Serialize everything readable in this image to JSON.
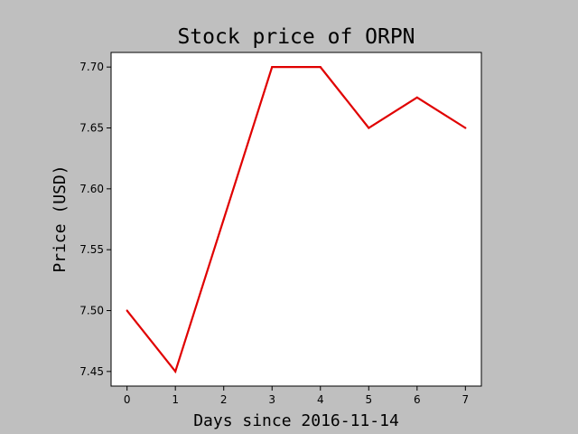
{
  "chart_data": {
    "type": "line",
    "title": "Stock price of ORPN",
    "xlabel": "Days since 2016-11-14",
    "ylabel": "Price (USD)",
    "x": [
      0,
      1,
      2,
      3,
      4,
      5,
      6,
      7
    ],
    "series": [
      {
        "name": "",
        "values": [
          7.5,
          7.45,
          7.575,
          7.7,
          7.7,
          7.65,
          7.675,
          7.65
        ],
        "color": "#e00000"
      }
    ],
    "xlim": [
      -0.33,
      7.33
    ],
    "ylim": [
      7.438,
      7.712
    ],
    "xticks": [
      "0",
      "1",
      "2",
      "3",
      "4",
      "5",
      "6",
      "7"
    ],
    "yticks": [
      "7.45",
      "7.50",
      "7.55",
      "7.60",
      "7.65",
      "7.70"
    ],
    "grid": false,
    "background": "#bfbfbf"
  }
}
